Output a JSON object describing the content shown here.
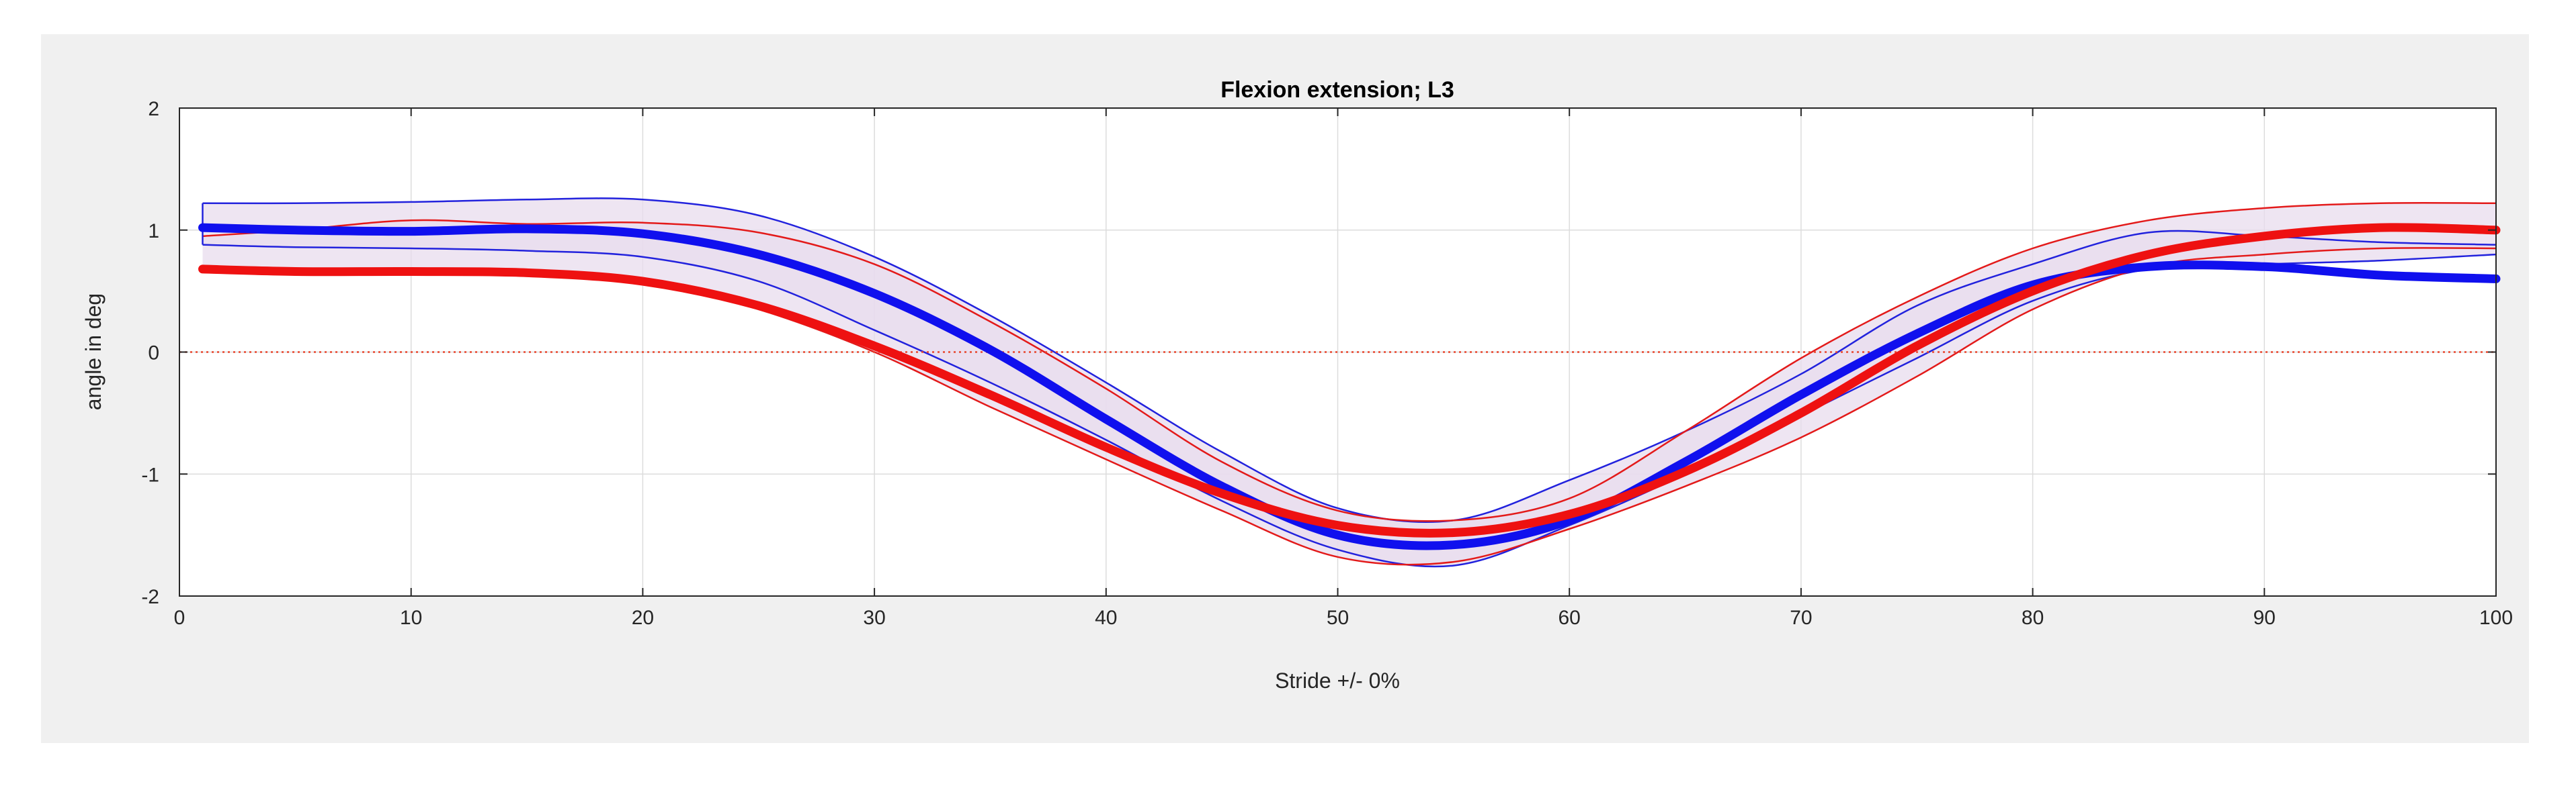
{
  "chart_data": {
    "type": "line",
    "title": "Flexion extension; L3",
    "xlabel": "Stride +/- 0%",
    "ylabel": "angle in deg",
    "xlim": [
      0,
      100
    ],
    "ylim": [
      -2,
      2
    ],
    "xticks": [
      0,
      10,
      20,
      30,
      40,
      50,
      60,
      70,
      80,
      90,
      100
    ],
    "yticks": [
      -2,
      -1,
      0,
      1,
      2
    ],
    "grid": true,
    "reference_line": {
      "y": 0,
      "color": "#e8452c",
      "style": "dotted"
    },
    "bands": [
      {
        "name": "blue range",
        "color": "#2222dd",
        "fill": "#e8dcee",
        "upper": {
          "x": [
            1,
            5,
            10,
            15,
            20,
            25,
            30,
            35,
            40,
            45,
            50,
            55,
            60,
            65,
            70,
            75,
            80,
            85,
            90,
            95,
            100
          ],
          "y": [
            1.22,
            1.22,
            1.23,
            1.25,
            1.25,
            1.12,
            0.78,
            0.3,
            -0.25,
            -0.82,
            -1.28,
            -1.38,
            -1.05,
            -0.65,
            -0.18,
            0.38,
            0.72,
            0.98,
            0.95,
            0.9,
            0.88
          ]
        },
        "lower": {
          "x": [
            1,
            5,
            10,
            15,
            20,
            25,
            30,
            35,
            40,
            45,
            50,
            55,
            60,
            65,
            70,
            75,
            80,
            85,
            90,
            95,
            100
          ],
          "y": [
            0.88,
            0.86,
            0.85,
            0.83,
            0.78,
            0.58,
            0.18,
            -0.25,
            -0.72,
            -1.22,
            -1.62,
            -1.75,
            -1.42,
            -1.0,
            -0.52,
            -0.05,
            0.42,
            0.68,
            0.72,
            0.75,
            0.8
          ]
        }
      },
      {
        "name": "red range",
        "color": "#e31a1a",
        "fill": "#e8dcee",
        "upper": {
          "x": [
            1,
            5,
            10,
            15,
            20,
            25,
            30,
            35,
            40,
            45,
            50,
            55,
            60,
            65,
            70,
            75,
            80,
            85,
            90,
            95,
            100
          ],
          "y": [
            0.95,
            1.0,
            1.08,
            1.05,
            1.06,
            0.98,
            0.72,
            0.25,
            -0.3,
            -0.9,
            -1.3,
            -1.38,
            -1.2,
            -0.65,
            -0.05,
            0.45,
            0.85,
            1.08,
            1.18,
            1.22,
            1.22
          ]
        },
        "lower": {
          "x": [
            1,
            5,
            10,
            15,
            20,
            25,
            30,
            35,
            40,
            45,
            50,
            55,
            60,
            65,
            70,
            75,
            80,
            85,
            90,
            95,
            100
          ],
          "y": [
            0.68,
            0.66,
            0.66,
            0.65,
            0.58,
            0.35,
            0.0,
            -0.45,
            -0.88,
            -1.3,
            -1.68,
            -1.72,
            -1.45,
            -1.1,
            -0.7,
            -0.2,
            0.35,
            0.7,
            0.8,
            0.85,
            0.85
          ]
        }
      }
    ],
    "series": [
      {
        "name": "blue mean",
        "color": "#1010ee",
        "x": [
          1,
          5,
          10,
          15,
          20,
          25,
          30,
          35,
          40,
          45,
          50,
          55,
          60,
          65,
          70,
          75,
          80,
          85,
          90,
          95,
          100
        ],
        "y": [
          1.02,
          1.0,
          0.99,
          1.01,
          0.97,
          0.8,
          0.48,
          0.02,
          -0.55,
          -1.1,
          -1.5,
          -1.58,
          -1.38,
          -0.9,
          -0.35,
          0.15,
          0.55,
          0.7,
          0.7,
          0.63,
          0.6
        ]
      },
      {
        "name": "red mean",
        "color": "#ee1111",
        "x": [
          1,
          5,
          10,
          15,
          20,
          25,
          30,
          35,
          40,
          45,
          50,
          55,
          60,
          65,
          70,
          75,
          80,
          85,
          90,
          95,
          100
        ],
        "y": [
          0.68,
          0.66,
          0.66,
          0.65,
          0.58,
          0.38,
          0.05,
          -0.35,
          -0.78,
          -1.16,
          -1.42,
          -1.48,
          -1.33,
          -0.98,
          -0.5,
          0.05,
          0.5,
          0.8,
          0.95,
          1.02,
          1.0
        ]
      }
    ]
  }
}
